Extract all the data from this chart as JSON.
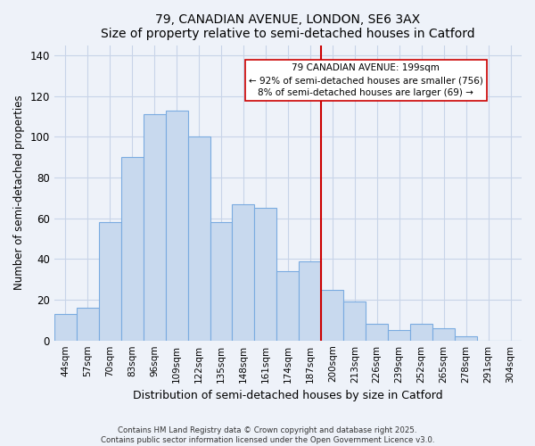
{
  "title": "79, CANADIAN AVENUE, LONDON, SE6 3AX",
  "subtitle": "Size of property relative to semi-detached houses in Catford",
  "xlabel": "Distribution of semi-detached houses by size in Catford",
  "ylabel": "Number of semi-detached properties",
  "bin_labels": [
    "44sqm",
    "57sqm",
    "70sqm",
    "83sqm",
    "96sqm",
    "109sqm",
    "122sqm",
    "135sqm",
    "148sqm",
    "161sqm",
    "174sqm",
    "187sqm",
    "200sqm",
    "213sqm",
    "226sqm",
    "239sqm",
    "252sqm",
    "265sqm",
    "278sqm",
    "291sqm",
    "304sqm"
  ],
  "bar_heights": [
    13,
    16,
    58,
    90,
    111,
    113,
    100,
    58,
    67,
    65,
    34,
    39,
    25,
    19,
    8,
    5,
    8,
    6,
    2,
    0,
    0
  ],
  "bar_color": "#c8d9ee",
  "bar_edge_color": "#7aabe0",
  "vline_color": "#cc0000",
  "ylim": [
    0,
    145
  ],
  "yticks": [
    0,
    20,
    40,
    60,
    80,
    100,
    120,
    140
  ],
  "annotation_title": "79 CANADIAN AVENUE: 199sqm",
  "annotation_line1": "← 92% of semi-detached houses are smaller (756)",
  "annotation_line2": "8% of semi-detached houses are larger (69) →",
  "footer_line1": "Contains HM Land Registry data © Crown copyright and database right 2025.",
  "footer_line2": "Contains public sector information licensed under the Open Government Licence v3.0.",
  "bg_color": "#eef2f9",
  "grid_color": "#c8d4e8",
  "vline_bar_index": 12
}
